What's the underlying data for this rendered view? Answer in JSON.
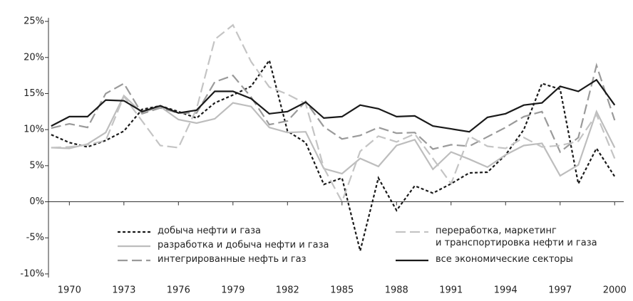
{
  "chart_data": {
    "type": "line",
    "x": [
      1969,
      1970,
      1971,
      1972,
      1973,
      1974,
      1975,
      1976,
      1977,
      1978,
      1979,
      1980,
      1981,
      1982,
      1983,
      1984,
      1985,
      1986,
      1987,
      1988,
      1989,
      1990,
      1991,
      1992,
      1993,
      1994,
      1995,
      1996,
      1997,
      1998,
      1999,
      2000
    ],
    "series": [
      {
        "name": "добыча нефти и газа",
        "color": "#1a1a1a",
        "style": "dotted",
        "values": [
          9.3,
          8.2,
          7.6,
          8.5,
          9.8,
          12.8,
          13.3,
          12.5,
          11.6,
          13.7,
          14.8,
          16.0,
          19.6,
          9.8,
          8.2,
          2.4,
          3.3,
          -6.8,
          3.3,
          -1.2,
          2.2,
          1.2,
          2.5,
          4.0,
          4.1,
          6.5,
          10.0,
          16.4,
          15.6,
          2.5,
          7.4,
          3.5
        ]
      },
      {
        "name": "разработка и добыча нефти и газа",
        "color": "#bdbdbd",
        "style": "solid",
        "values": [
          7.5,
          7.4,
          8.0,
          9.6,
          14.7,
          12.3,
          13.2,
          11.4,
          10.9,
          11.5,
          13.7,
          13.2,
          10.3,
          9.6,
          9.7,
          4.6,
          3.9,
          6.0,
          4.9,
          7.8,
          8.6,
          4.5,
          6.9,
          5.9,
          4.8,
          6.5,
          7.8,
          8.1,
          3.6,
          5.1,
          12.5,
          7.5
        ]
      },
      {
        "name": "интегрированные нефть и газ",
        "color": "#9a9a9a",
        "style": "dashed",
        "values": [
          10.2,
          10.8,
          10.3,
          15.0,
          16.4,
          12.2,
          13.0,
          12.3,
          12.3,
          16.6,
          17.5,
          14.5,
          10.7,
          11.2,
          13.9,
          10.4,
          8.7,
          9.2,
          10.3,
          9.5,
          9.6,
          7.3,
          7.9,
          7.7,
          9.0,
          10.3,
          11.8,
          12.5,
          6.9,
          8.9,
          18.9,
          11.3
        ]
      },
      {
        "name": "переработка, маркетинг\nи транспортировка нефти и газа",
        "color": "#c4c4c4",
        "style": "dashed",
        "values": [
          7.5,
          7.6,
          7.9,
          8.5,
          14.6,
          11.2,
          7.8,
          7.5,
          12.9,
          22.5,
          24.5,
          19.4,
          15.9,
          14.9,
          13.6,
          4.7,
          0.0,
          7.0,
          9.1,
          8.3,
          9.4,
          6.0,
          2.5,
          9.1,
          7.7,
          7.4,
          8.9,
          7.6,
          7.8,
          8.4,
          12.1,
          6.0
        ]
      },
      {
        "name": "все экономические секторы",
        "color": "#1a1a1a",
        "style": "solid",
        "values": [
          10.5,
          11.8,
          11.8,
          14.1,
          14.0,
          12.5,
          13.3,
          12.3,
          12.7,
          15.3,
          15.3,
          14.3,
          12.2,
          12.5,
          13.8,
          11.6,
          11.8,
          13.4,
          12.9,
          11.8,
          11.9,
          10.5,
          10.1,
          9.7,
          11.7,
          12.2,
          13.4,
          13.7,
          16.0,
          15.3,
          16.9,
          13.4
        ]
      }
    ],
    "xlim": [
      1968.85,
      2000.5
    ],
    "xticks": [
      1970,
      1973,
      1976,
      1979,
      1982,
      1985,
      1988,
      1991,
      1994,
      1997,
      2000
    ],
    "ylim": [
      -10.5,
      25.5
    ],
    "yticks": [
      {
        "value": -10,
        "label": "-10%"
      },
      {
        "value": -5,
        "label": "-5%"
      },
      {
        "value": 0,
        "label": "0%"
      },
      {
        "value": 5,
        "label": "5%"
      },
      {
        "value": 10,
        "label": "10%"
      },
      {
        "value": 15,
        "label": "15%"
      },
      {
        "value": 20,
        "label": "20%"
      },
      {
        "value": 25,
        "label": "25%"
      }
    ]
  }
}
